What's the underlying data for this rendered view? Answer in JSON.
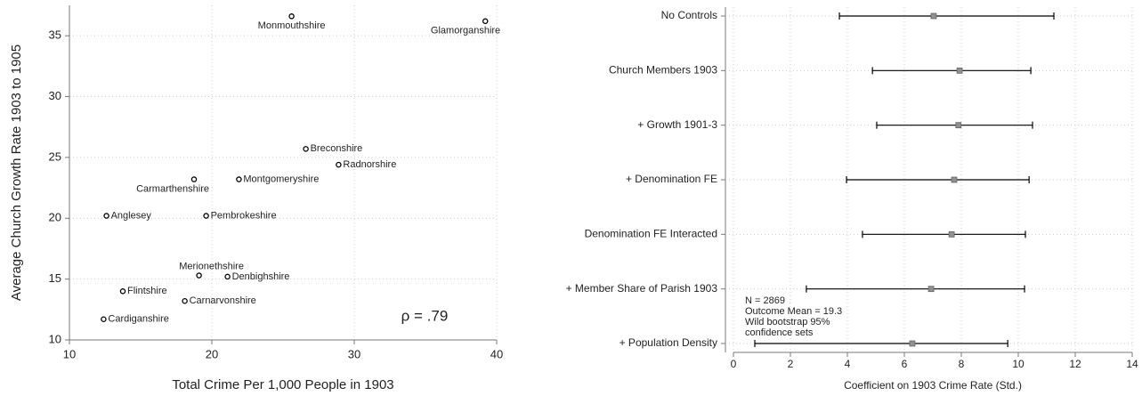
{
  "chart_data": [
    {
      "type": "scatter",
      "x_label": "Total Crime Per 1,000 People in 1903",
      "y_label": "Average Church Growth Rate 1903 to 1905",
      "annotation": "ρ = .79",
      "labels": [
        "Monmouthshire",
        "Glamorganshire",
        "Breconshire",
        "Radnorshire",
        "Montgomeryshire",
        "Carmarthenshire",
        "Anglesey",
        "Pembrokeshire",
        "Merionethshire",
        "Denbighshire",
        "Flintshire",
        "Carnarvonshire",
        "Cardiganshire"
      ],
      "x": [
        25.6,
        39.2,
        26.6,
        28.9,
        21.9,
        18.75,
        12.6,
        19.6,
        19.1,
        21.1,
        13.75,
        18.1,
        12.4
      ],
      "values": [
        36.6,
        36.2,
        25.7,
        24.4,
        23.2,
        23.2,
        20.2,
        20.2,
        15.3,
        15.2,
        14.0,
        13.2,
        11.7
      ],
      "color": "#000000",
      "xlim": [
        10,
        40
      ],
      "xticks": [
        10,
        20,
        30,
        40
      ],
      "ylim": [
        10,
        37.5
      ],
      "yticks": [
        10,
        15,
        20,
        25,
        30,
        35
      ],
      "grid": true
    },
    {
      "type": "coefficient",
      "x_label": "Coefficient on 1903 Crime Rate (Std.)",
      "annotation": [
        "N = 2869",
        "Outcome Mean = 19.3",
        "Wild bootstrap 95%",
        "confidence sets"
      ],
      "categories": [
        "No Controls",
        "Church Members 1903",
        "+ Growth 1901-3",
        "+ Denomination FE",
        "Denomination FE Interacted",
        "+ Member Share of Parish 1903",
        "+ Population Density"
      ],
      "values": [
        7.03,
        7.94,
        7.9,
        7.75,
        7.66,
        6.94,
        6.28
      ],
      "lower": [
        3.72,
        4.88,
        5.03,
        3.97,
        4.53,
        2.56,
        0.75
      ],
      "upper": [
        11.25,
        10.44,
        10.5,
        10.38,
        10.25,
        10.22,
        9.63
      ],
      "color": "#000000",
      "point_color": "#909090",
      "xlim": [
        0,
        14
      ],
      "xticks": [
        0,
        2,
        4,
        6,
        8,
        10,
        12,
        14
      ],
      "grid": true
    }
  ]
}
